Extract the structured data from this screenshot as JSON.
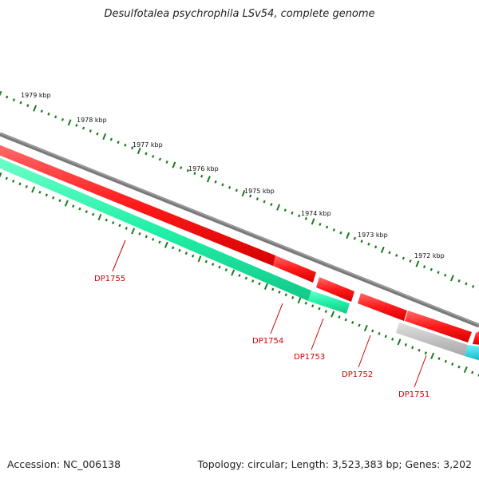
{
  "header": {
    "title": "Desulfotalea psychrophila LSv54, complete genome"
  },
  "footer": {
    "accession_label": "Accession:",
    "accession": "NC_006138",
    "topology": "Topology: circular; Length: 3,523,383 bp; Genes: 3,202"
  },
  "ticks": [
    "1979 kbp",
    "1978 kbp",
    "1977 kbp",
    "1976 kbp",
    "1975 kbp",
    "1974 kbp",
    "1973 kbp",
    "1972 kbp"
  ],
  "genes": [
    "DP1755",
    "DP1754",
    "DP1753",
    "DP1752",
    "DP1751"
  ],
  "colors": {
    "backbone": "#808080",
    "forward_gene": "#ff1a1a",
    "reverse_gene_a": "#22f0a8",
    "reverse_gene_b": "#1ec8d8",
    "pseudo_gene": "#c0c0c0",
    "tick": "#1a7a1a",
    "label": "#cc0000"
  }
}
